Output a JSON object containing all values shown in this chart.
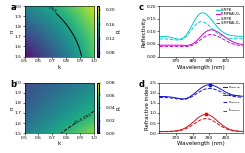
{
  "panel_a": {
    "label": "a",
    "k_range": [
      0.5,
      1.0
    ],
    "n_range": [
      1.5,
      2.0
    ],
    "colormap": "viridis",
    "R_contour": 0.153,
    "R_contour_label": "R=0.153",
    "cbar_ticks": [
      0.08,
      0.12,
      0.16,
      0.2
    ],
    "cbar_label": "R",
    "xlabel": "k",
    "ylabel": "n",
    "vmin": 0.07,
    "vmax": 0.21
  },
  "panel_b": {
    "label": "b",
    "k_range": [
      0.5,
      1.0
    ],
    "n_range": [
      1.5,
      2.0
    ],
    "colormap": "viridis",
    "R_contour": 0.051,
    "R_contour_label": "R=0.051",
    "cbar_ticks": [
      0.0,
      0.02,
      0.04,
      0.06,
      0.08
    ],
    "cbar_label": "R",
    "xlabel": "k",
    "ylabel": "n",
    "vmin": 0.0,
    "vmax": 0.08
  },
  "panel_c": {
    "label": "c",
    "xlabel": "Wavelength (nm)",
    "ylabel": "Reflectivity",
    "xlim": [
      360,
      410
    ],
    "ylim": [
      0.0,
      0.2
    ],
    "xticks": [
      370,
      380,
      390,
      400
    ],
    "yticks": [
      0.0,
      0.05,
      0.1,
      0.15,
      0.2
    ],
    "lines": [
      {
        "label": "S-MPB",
        "color": "#00CCCC",
        "linestyle": "solid"
      },
      {
        "label": "R-MPBAl₂O₃",
        "color": "#CC00CC",
        "linestyle": "solid"
      },
      {
        "label": "S-MPB",
        "color": "#55DDDD",
        "linestyle": "dashed"
      },
      {
        "label": "S-MPBAl₂O₃",
        "color": "#DD55DD",
        "linestyle": "dashed"
      }
    ]
  },
  "panel_d": {
    "label": "d",
    "xlabel": "Wavelength (nm)",
    "ylabel": "Refractive index",
    "xlim": [
      360,
      410
    ],
    "ylim": [
      0.0,
      2.5
    ],
    "xticks": [
      370,
      380,
      390,
      400
    ],
    "yticks": [
      0.0,
      0.5,
      1.0,
      1.5,
      2.0,
      2.5
    ],
    "lines": [
      {
        "label": "n_{R-MPB}",
        "color": "#1111CC",
        "linestyle": "solid"
      },
      {
        "label": "k_{R-MPB}",
        "color": "#CC1111",
        "linestyle": "solid"
      },
      {
        "label": "n_{S-MPB}",
        "color": "#1111CC",
        "linestyle": "dashed"
      },
      {
        "label": "k_{S-MPB}",
        "color": "#CC1111",
        "linestyle": "dashed"
      }
    ]
  }
}
